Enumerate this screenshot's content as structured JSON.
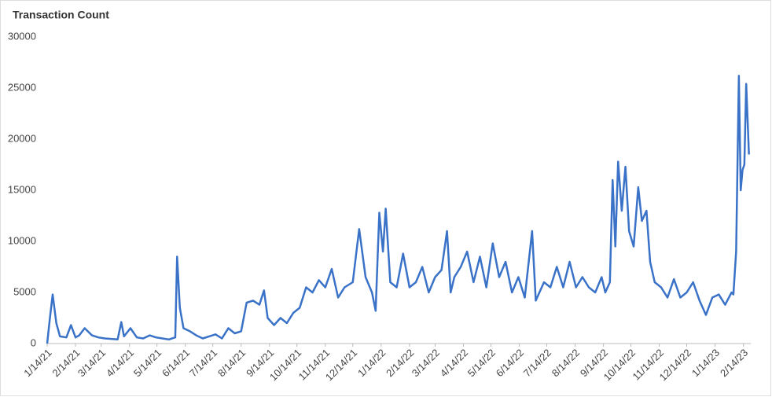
{
  "chart_data": {
    "type": "line",
    "title": "Transaction Count",
    "x": [
      "1/14/21",
      "1/17/21",
      "1/20/21",
      "1/24/21",
      "1/28/21",
      "2/4/21",
      "2/9/21",
      "2/14/21",
      "2/18/21",
      "2/24/21",
      "3/4/21",
      "3/11/21",
      "3/18/21",
      "3/25/21",
      "4/1/21",
      "4/5/21",
      "4/8/21",
      "4/15/21",
      "4/22/21",
      "4/29/21",
      "5/6/21",
      "5/13/21",
      "5/20/21",
      "5/27/21",
      "6/3/21",
      "6/5/21",
      "6/8/21",
      "6/12/21",
      "6/19/21",
      "6/26/21",
      "7/3/21",
      "7/10/21",
      "7/17/21",
      "7/24/21",
      "7/31/21",
      "8/7/21",
      "8/14/21",
      "8/20/21",
      "8/27/21",
      "9/3/21",
      "9/8/21",
      "9/12/21",
      "9/19/21",
      "9/26/21",
      "10/3/21",
      "10/10/21",
      "10/17/21",
      "10/24/21",
      "10/31/21",
      "11/7/21",
      "11/14/21",
      "11/21/21",
      "11/28/21",
      "12/5/21",
      "12/14/21",
      "12/21/21",
      "12/28/21",
      "1/4/22",
      "1/8/22",
      "1/12/22",
      "1/16/22",
      "1/19/22",
      "1/24/22",
      "1/31/22",
      "2/7/22",
      "2/14/22",
      "2/21/22",
      "2/28/22",
      "3/7/22",
      "3/14/22",
      "3/21/22",
      "3/27/22",
      "3/31/22",
      "4/4/22",
      "4/11/22",
      "4/18/22",
      "4/25/22",
      "5/2/22",
      "5/9/22",
      "5/16/22",
      "5/23/22",
      "5/30/22",
      "6/6/22",
      "6/13/22",
      "6/20/22",
      "6/28/22",
      "7/2/22",
      "7/11/22",
      "7/18/22",
      "7/25/22",
      "8/1/22",
      "8/8/22",
      "8/15/22",
      "8/22/22",
      "8/29/22",
      "9/5/22",
      "9/12/22",
      "9/16/22",
      "9/21/22",
      "9/24/22",
      "9/27/22",
      "9/30/22",
      "10/4/22",
      "10/8/22",
      "10/12/22",
      "10/17/22",
      "10/22/22",
      "10/26/22",
      "10/31/22",
      "11/4/22",
      "11/9/22",
      "11/16/22",
      "11/23/22",
      "11/30/22",
      "12/7/22",
      "12/14/22",
      "12/21/22",
      "12/28/22",
      "1/4/23",
      "1/11/23",
      "1/18/23",
      "1/25/23",
      "2/1/23",
      "2/3/23",
      "2/6/23",
      "2/9/23",
      "2/11/23",
      "2/13/23",
      "2/15/23",
      "2/17/23",
      "2/20/23"
    ],
    "series": [
      {
        "name": "Transaction Count",
        "color": "#3a72c8",
        "values": [
          0,
          2500,
          4800,
          2000,
          700,
          600,
          1800,
          600,
          800,
          1500,
          800,
          600,
          500,
          450,
          400,
          2100,
          700,
          1500,
          600,
          500,
          800,
          600,
          500,
          400,
          600,
          8500,
          3500,
          1500,
          1200,
          800,
          500,
          700,
          900,
          500,
          1500,
          1000,
          1200,
          4000,
          4200,
          3800,
          5200,
          2500,
          1800,
          2500,
          2000,
          3000,
          3500,
          5500,
          5000,
          6200,
          5500,
          7300,
          4500,
          5500,
          6000,
          11200,
          6500,
          5000,
          3200,
          12800,
          9000,
          13200,
          6000,
          5500,
          8800,
          5500,
          6000,
          7500,
          5000,
          6500,
          7200,
          11000,
          5000,
          6500,
          7500,
          9000,
          6000,
          8500,
          5500,
          9800,
          6500,
          8000,
          5000,
          6500,
          4500,
          11000,
          4200,
          6000,
          5500,
          7500,
          5500,
          8000,
          5500,
          6500,
          5500,
          5000,
          6500,
          5000,
          6000,
          16000,
          9500,
          17800,
          13000,
          17300,
          11000,
          9500,
          15300,
          12000,
          13000,
          8000,
          6000,
          5500,
          4500,
          6300,
          4500,
          5000,
          6000,
          4200,
          2800,
          4500,
          4800,
          3800,
          5000,
          4800,
          9000,
          26200,
          15000,
          17000,
          17500,
          25400,
          18500
        ]
      }
    ],
    "xlim": [
      "1/14/21",
      "2/22/23"
    ],
    "xticks": [
      "1/14/21",
      "2/14/21",
      "3/14/21",
      "4/14/21",
      "5/14/21",
      "6/14/21",
      "7/14/21",
      "8/14/21",
      "9/14/21",
      "10/14/21",
      "11/14/21",
      "12/14/21",
      "1/14/22",
      "2/14/22",
      "3/14/22",
      "4/14/22",
      "5/14/22",
      "6/14/22",
      "7/14/22",
      "8/14/22",
      "9/14/22",
      "10/14/22",
      "11/14/22",
      "12/14/22",
      "1/14/23",
      "2/14/23"
    ],
    "ylim": [
      0,
      30000
    ],
    "yticks": [
      0,
      5000,
      10000,
      15000,
      20000,
      25000,
      30000
    ],
    "grid": false
  }
}
